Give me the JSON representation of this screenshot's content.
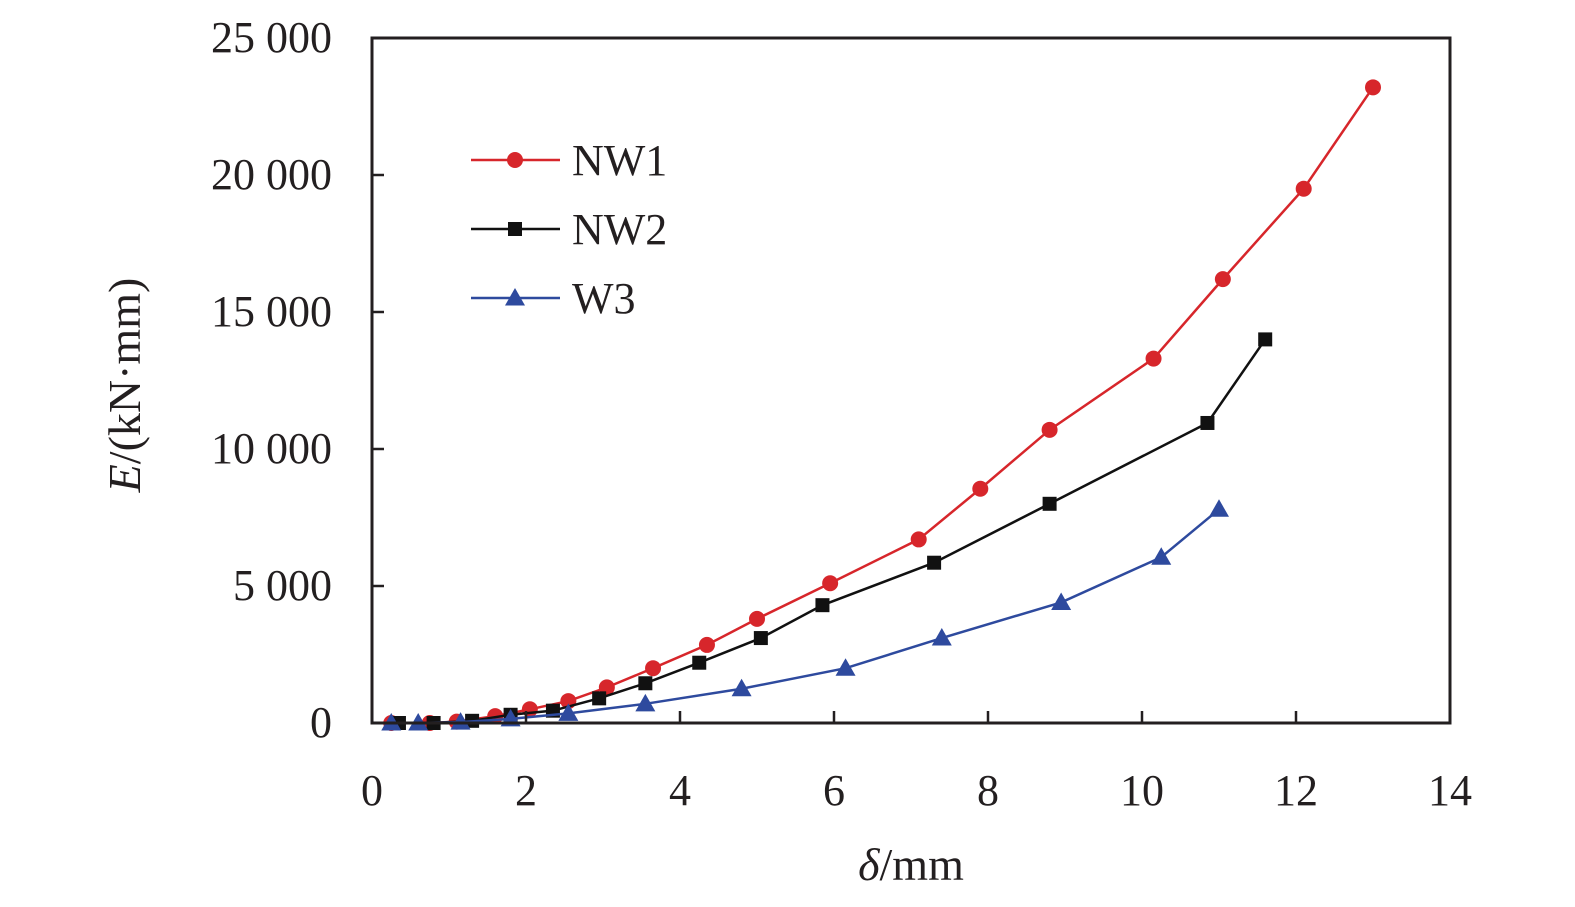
{
  "chart_data": {
    "type": "line",
    "title": "",
    "xlabel": "δ/mm",
    "ylabel": "E/(kN·mm)",
    "xlim": [
      0,
      14
    ],
    "ylim": [
      0,
      25000
    ],
    "xticks": [
      0,
      2,
      4,
      6,
      8,
      10,
      12,
      14
    ],
    "yticks": [
      0,
      5000,
      10000,
      15000,
      20000,
      25000
    ],
    "xtick_labels": [
      "0",
      "2",
      "4",
      "6",
      "8",
      "10",
      "12",
      "14"
    ],
    "ytick_labels": [
      "0",
      "5 000",
      "10 000",
      "15 000",
      "20 000",
      "25 000"
    ],
    "grid": false,
    "legend_position": "top-left",
    "series": [
      {
        "name": "NW1",
        "color": "#d7262b",
        "marker": "circle",
        "x": [
          0.25,
          0.75,
          1.1,
          1.6,
          2.05,
          2.55,
          3.05,
          3.65,
          4.35,
          5.0,
          5.95,
          7.1,
          7.9,
          8.8,
          10.15,
          11.05,
          12.1,
          13.0
        ],
        "y": [
          0,
          0,
          50,
          250,
          500,
          800,
          1300,
          2000,
          2850,
          3800,
          5100,
          6700,
          8550,
          10700,
          13300,
          16200,
          19500,
          23200
        ]
      },
      {
        "name": "NW2",
        "color": "#111111",
        "marker": "square",
        "x": [
          0.35,
          0.8,
          1.3,
          1.8,
          2.35,
          2.95,
          3.55,
          4.25,
          5.05,
          5.85,
          7.3,
          8.8,
          10.85,
          11.6
        ],
        "y": [
          0,
          0,
          80,
          300,
          450,
          900,
          1450,
          2200,
          3100,
          4300,
          5850,
          8000,
          10950,
          14000
        ]
      },
      {
        "name": "W3",
        "color": "#2e4a9e",
        "marker": "triangle",
        "x": [
          0.25,
          0.6,
          1.15,
          1.8,
          2.55,
          3.55,
          4.8,
          6.15,
          7.4,
          8.95,
          10.25,
          11.0
        ],
        "y": [
          0,
          0,
          30,
          150,
          350,
          700,
          1250,
          2000,
          3100,
          4400,
          6050,
          7800
        ]
      }
    ]
  }
}
